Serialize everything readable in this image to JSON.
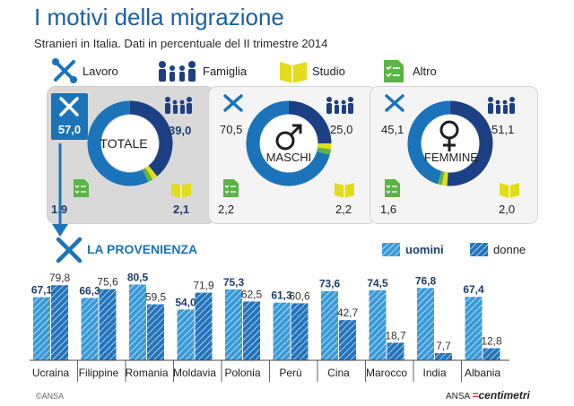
{
  "title": "I motivi della migrazione",
  "subtitle": "Stranieri in Italia. Dati in percentuale del II trimestre 2014",
  "legend": {
    "lavoro": "Lavoro",
    "famiglia": "Famiglia",
    "studio": "Studio",
    "altro": "Altro"
  },
  "colors": {
    "lavoro": "#1b74b9",
    "famiglia": "#1d3f83",
    "studio": "#e2dc1c",
    "altro": "#5bb445",
    "bar_uomini": "#3a9ad9",
    "bar_donne": "#2474bd"
  },
  "panels": [
    {
      "label": "TOTALE",
      "lavoro": "57,0",
      "famiglia": "39,0",
      "altro": "1,9",
      "studio": "2,1"
    },
    {
      "label": "MASCHI",
      "lavoro": "70,5",
      "famiglia": "25,0",
      "altro": "2,2",
      "studio": "2,2"
    },
    {
      "label": "FEMMINE",
      "lavoro": "45,1",
      "famiglia": "51,1",
      "altro": "1,6",
      "studio": "2,0"
    }
  ],
  "provenienza": {
    "title": "LA PROVENIENZA",
    "legend_uomini": "uomini",
    "legend_donne": "donne"
  },
  "chart_data": [
    {
      "type": "pie",
      "title": "TOTALE",
      "categories": [
        "Lavoro",
        "Famiglia",
        "Studio",
        "Altro"
      ],
      "values": [
        57.0,
        39.0,
        2.1,
        1.9
      ]
    },
    {
      "type": "pie",
      "title": "MASCHI",
      "categories": [
        "Lavoro",
        "Famiglia",
        "Studio",
        "Altro"
      ],
      "values": [
        70.5,
        25.0,
        2.2,
        2.2
      ]
    },
    {
      "type": "pie",
      "title": "FEMMINE",
      "categories": [
        "Lavoro",
        "Famiglia",
        "Studio",
        "Altro"
      ],
      "values": [
        45.1,
        51.1,
        2.0,
        1.6
      ]
    },
    {
      "type": "bar",
      "title": "LA PROVENIENZA",
      "categories": [
        "Ucraina",
        "Filippine",
        "Romania",
        "Moldavia",
        "Polonia",
        "Perù",
        "Cina",
        "Marocco",
        "India",
        "Albania"
      ],
      "series": [
        {
          "name": "uomini",
          "values": [
            67.1,
            66.3,
            80.5,
            54.0,
            75.3,
            61.3,
            73.6,
            74.5,
            76.8,
            67.4
          ],
          "labels": [
            "67,1",
            "66,3",
            "80,5",
            "54,0",
            "75,3",
            "61,3",
            "73,6",
            "74,5",
            "76,8",
            "67,4"
          ]
        },
        {
          "name": "donne",
          "values": [
            79.8,
            75.6,
            59.5,
            71.9,
            62.5,
            60.6,
            42.7,
            18.7,
            7.7,
            12.8
          ],
          "labels": [
            "79,8",
            "75,6",
            "59,5",
            "71,9",
            "62,5",
            "60,6",
            "42,7",
            "18,7",
            "7,7",
            "12,8"
          ]
        }
      ],
      "bold_series_per_category": [
        "uomini",
        "uomini",
        "uomini",
        "uomini",
        "uomini",
        "uomini",
        "uomini",
        "uomini",
        "uomini",
        "uomini"
      ],
      "grid": false
    }
  ],
  "footer": {
    "copyright": "©ANSA",
    "brand_prefix": "ANSA",
    "brand_name": "centimetri"
  }
}
